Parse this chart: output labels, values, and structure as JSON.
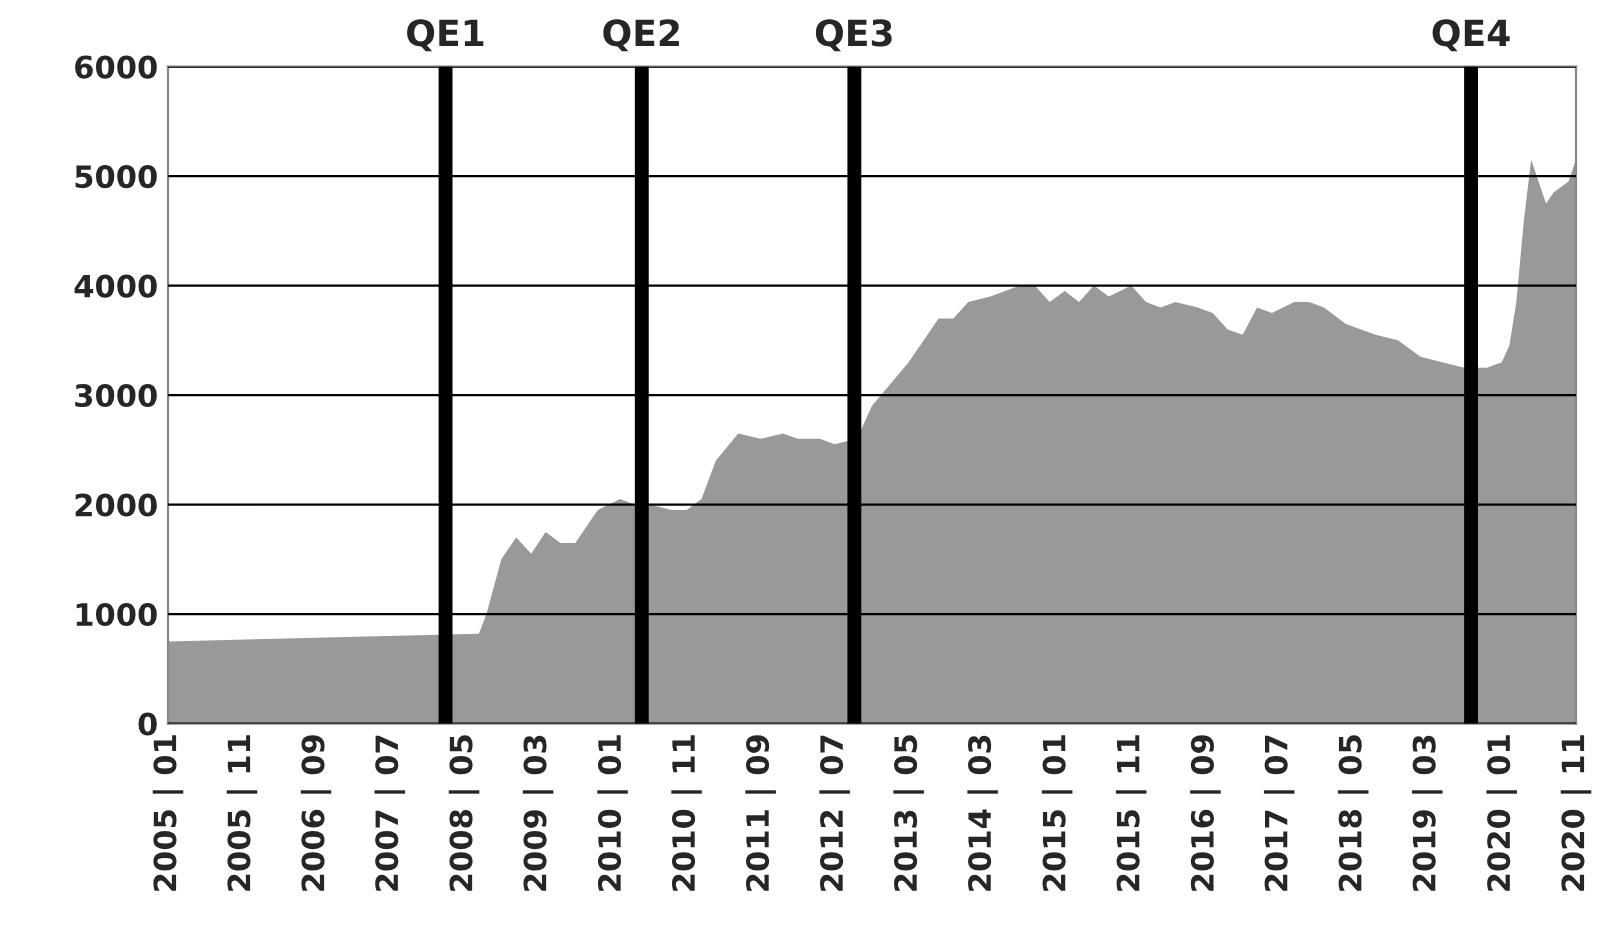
{
  "chart_data": {
    "type": "area",
    "x": [
      "2005-01",
      "2008-07",
      "2008-08",
      "2008-10",
      "2008-12",
      "2009-02",
      "2009-04",
      "2009-06",
      "2009-08",
      "2009-11",
      "2010-02",
      "2010-04",
      "2010-06",
      "2010-09",
      "2010-11",
      "2011-01",
      "2011-03",
      "2011-06",
      "2011-09",
      "2011-12",
      "2012-02",
      "2012-05",
      "2012-07",
      "2012-10",
      "2012-12",
      "2013-05",
      "2013-09",
      "2013-11",
      "2014-01",
      "2014-04",
      "2014-08",
      "2014-10",
      "2014-12",
      "2015-02",
      "2015-04",
      "2015-06",
      "2015-08",
      "2015-11",
      "2016-01",
      "2016-03",
      "2016-05",
      "2016-08",
      "2016-10",
      "2016-12",
      "2017-02",
      "2017-04",
      "2017-06",
      "2017-09",
      "2017-11",
      "2018-01",
      "2018-04",
      "2018-08",
      "2018-11",
      "2019-02",
      "2019-05",
      "2019-08",
      "2019-11",
      "2020-01",
      "2020-02",
      "2020-03",
      "2020-04",
      "2020-05",
      "2020-07",
      "2020-08",
      "2020-10",
      "2020-11"
    ],
    "series": [
      {
        "color": "#999999",
        "values": [
          750,
          820,
          1000,
          1500,
          1700,
          1550,
          1750,
          1650,
          1650,
          1950,
          2050,
          2000,
          2000,
          1950,
          1950,
          2050,
          2400,
          2650,
          2600,
          2650,
          2600,
          2600,
          2550,
          2600,
          2900,
          3300,
          3700,
          3700,
          3850,
          3900,
          4000,
          4000,
          3850,
          3950,
          3850,
          4000,
          3900,
          4000,
          3850,
          3800,
          3850,
          3800,
          3750,
          3600,
          3550,
          3800,
          3750,
          3850,
          3850,
          3800,
          3650,
          3550,
          3500,
          3350,
          3300,
          3250,
          3250,
          3300,
          3450,
          3850,
          4600,
          5150,
          4750,
          4850,
          4950,
          5150
        ]
      }
    ],
    "xlim": [
      "2005-01",
      "2020-11"
    ],
    "xticks": [
      {
        "value": "2005-01",
        "label": "2005 | 01"
      },
      {
        "value": "2005-11",
        "label": "2005 | 11"
      },
      {
        "value": "2006-09",
        "label": "2006 | 09"
      },
      {
        "value": "2007-07",
        "label": "2007 | 07"
      },
      {
        "value": "2008-05",
        "label": "2008 | 05"
      },
      {
        "value": "2009-03",
        "label": "2009 | 03"
      },
      {
        "value": "2010-01",
        "label": "2010 | 01"
      },
      {
        "value": "2010-11",
        "label": "2010 | 11"
      },
      {
        "value": "2011-09",
        "label": "2011 | 09"
      },
      {
        "value": "2012-07",
        "label": "2012 | 07"
      },
      {
        "value": "2013-05",
        "label": "2013 | 05"
      },
      {
        "value": "2014-03",
        "label": "2014 | 03"
      },
      {
        "value": "2015-01",
        "label": "2015 | 01"
      },
      {
        "value": "2015-11",
        "label": "2015 | 11"
      },
      {
        "value": "2016-09",
        "label": "2016 | 09"
      },
      {
        "value": "2017-07",
        "label": "2017 | 07"
      },
      {
        "value": "2018-05",
        "label": "2018 | 05"
      },
      {
        "value": "2019-03",
        "label": "2019 | 03"
      },
      {
        "value": "2020-01",
        "label": "2020 | 01"
      },
      {
        "value": "2020-11",
        "label": "2020 | 11"
      }
    ],
    "ylim": [
      0,
      6000
    ],
    "yticks": [
      0,
      1000,
      2000,
      3000,
      4000,
      5000,
      6000
    ],
    "grid": "y",
    "legend": false,
    "ref_lines": [
      {
        "axis": "x",
        "value": "2008-02-15",
        "label": "QE1",
        "color": "#000000"
      },
      {
        "axis": "x",
        "value": "2010-05-01",
        "label": "QE2",
        "color": "#000000"
      },
      {
        "axis": "x",
        "value": "2012-09-20",
        "label": "QE3",
        "color": "#000000"
      },
      {
        "axis": "x",
        "value": "2019-08-28",
        "label": "QE4",
        "color": "#000000"
      }
    ]
  }
}
